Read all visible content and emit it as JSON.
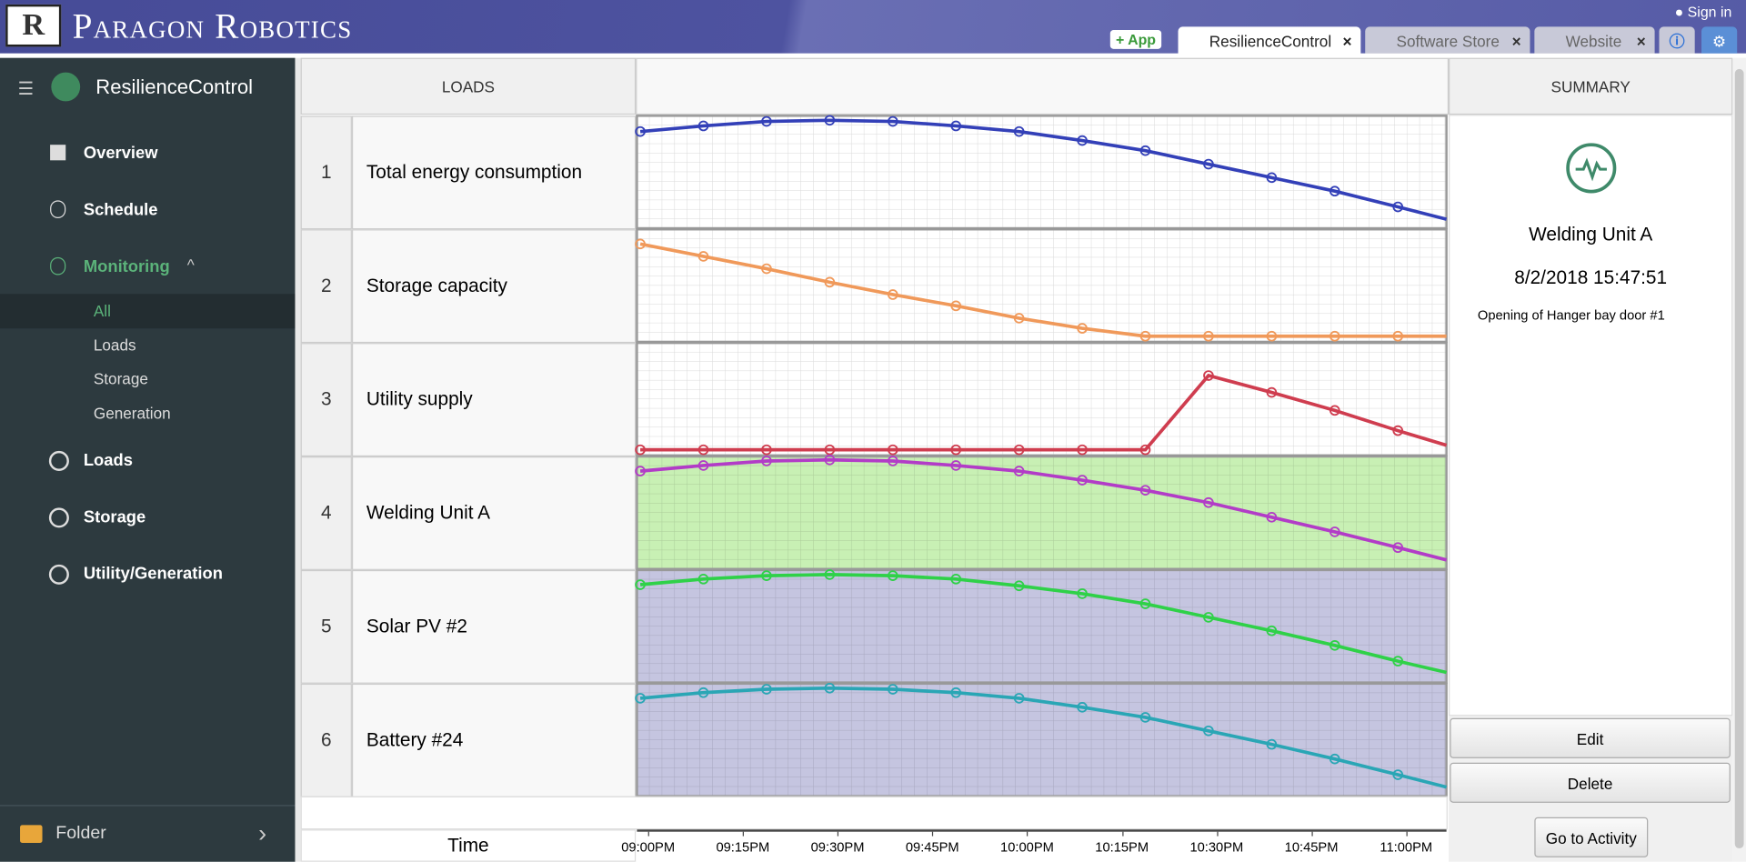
{
  "header": {
    "brand": "Paragon Robotics",
    "sign_in": "Sign in",
    "add_app": "+ App",
    "tabs": [
      "ResilienceControl",
      "Software Store",
      "Website"
    ]
  },
  "sidebar": {
    "app": "ResilienceControl",
    "nav": [
      "Overview",
      "Schedule",
      "Monitoring"
    ],
    "subnav": [
      "All",
      "Loads",
      "Storage",
      "Generation"
    ],
    "nav2": [
      "Loads",
      "Storage",
      "Utility/Generation"
    ],
    "folder": "Folder"
  },
  "table": {
    "loads_header": "LOADS",
    "time_label": "Time",
    "time_ticks": [
      "09:00PM",
      "09:15PM",
      "09:30PM",
      "09:45PM",
      "10:00PM",
      "10:15PM",
      "10:30PM",
      "10:45PM",
      "11:00PM"
    ],
    "rows": [
      {
        "index": 1,
        "label": "Total energy consumption",
        "color": "#3340b8",
        "background": "#ffffff",
        "values": [
          86,
          91,
          95,
          96,
          95,
          91,
          86,
          78,
          69,
          57,
          45,
          33,
          19,
          8
        ]
      },
      {
        "index": 2,
        "label": "Storage capacity",
        "color": "#f0995a",
        "background": "#ffffff",
        "values": [
          87,
          76,
          65,
          53,
          42,
          32,
          21,
          12,
          5,
          5,
          5,
          5,
          5,
          5
        ]
      },
      {
        "index": 3,
        "label": "Utility supply",
        "color": "#cf3d4f",
        "background": "#ffffff",
        "values": [
          5,
          5,
          5,
          5,
          5,
          5,
          5,
          5,
          5,
          71,
          56,
          40,
          22,
          9
        ]
      },
      {
        "index": 4,
        "label": "Welding Unit A",
        "color": "#b23cc7",
        "background": "#c8f0b4",
        "values": [
          87,
          92,
          96,
          97,
          96,
          92,
          87,
          79,
          70,
          59,
          46,
          33,
          19,
          8
        ]
      },
      {
        "index": 5,
        "label": "Solar PV #2",
        "color": "#2fd148",
        "background": "#c5c5e0",
        "values": [
          87,
          92,
          95,
          96,
          95,
          92,
          86,
          79,
          70,
          58,
          46,
          33,
          19,
          9
        ]
      },
      {
        "index": 6,
        "label": "Battery #24",
        "color": "#2aa6b5",
        "background": "#c5c5e0",
        "values": [
          87,
          92,
          95,
          96,
          95,
          92,
          87,
          79,
          70,
          58,
          46,
          33,
          19,
          8
        ]
      }
    ]
  },
  "summary": {
    "header": "SUMMARY",
    "name": "Welding Unit A",
    "timestamp": "8/2/2018 15:47:51",
    "description": "Opening of Hanger bay door #1",
    "buttons": [
      "Edit",
      "Delete",
      "Go to Activity"
    ]
  }
}
